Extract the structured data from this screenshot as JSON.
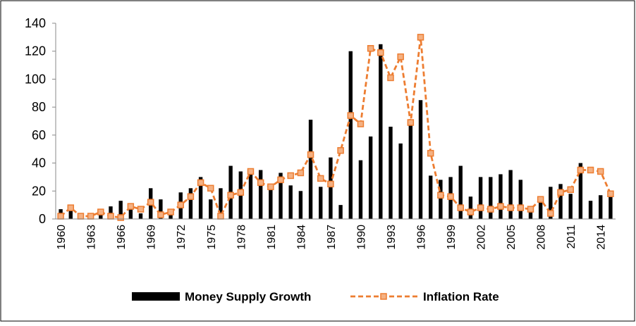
{
  "chart_data": {
    "type": "bar-line",
    "categories": [
      "1960",
      null,
      null,
      "1963",
      null,
      null,
      "1966",
      null,
      null,
      "1969",
      null,
      null,
      "1972",
      null,
      null,
      "1975",
      null,
      null,
      "1978",
      null,
      null,
      "1981",
      null,
      null,
      "1984",
      null,
      null,
      "1987",
      null,
      null,
      "1990",
      null,
      null,
      "1993",
      null,
      null,
      "1996",
      null,
      null,
      "1999",
      null,
      null,
      "2002",
      null,
      null,
      "2005",
      null,
      null,
      "2008",
      null,
      null,
      "2011",
      null,
      null,
      "2014",
      null
    ],
    "series": [
      {
        "name": "Money Supply Growth",
        "type": "bar",
        "color": "#000000",
        "values": [
          7,
          6,
          1,
          3,
          4,
          9,
          13,
          9,
          4,
          22,
          14,
          5,
          19,
          22,
          30,
          14,
          22,
          38,
          34,
          35,
          35,
          25,
          33,
          24,
          20,
          71,
          23,
          44,
          10,
          120,
          42,
          59,
          125,
          66,
          54,
          70,
          85,
          31,
          28,
          30,
          38,
          16,
          30,
          30,
          32,
          35,
          28,
          6,
          12,
          23,
          25,
          18,
          40,
          13,
          17,
          20
        ]
      },
      {
        "name": "Inflation Rate",
        "type": "line",
        "color": "#ED7D31",
        "values": [
          2,
          8,
          2,
          2,
          5,
          2,
          1,
          9,
          7,
          12,
          3,
          5,
          10,
          16,
          26,
          22,
          2,
          17,
          19,
          34,
          26,
          23,
          28,
          31,
          33,
          46,
          29,
          25,
          49,
          74,
          68,
          122,
          119,
          101,
          116,
          69,
          130,
          47,
          17,
          16,
          8,
          5,
          8,
          7,
          9,
          8,
          8,
          7,
          14,
          4,
          19,
          21,
          35,
          35,
          34,
          18
        ]
      }
    ],
    "ylim": [
      0,
      140
    ],
    "yticks": [
      0,
      20,
      40,
      60,
      80,
      100,
      120,
      140
    ],
    "grid": false
  }
}
